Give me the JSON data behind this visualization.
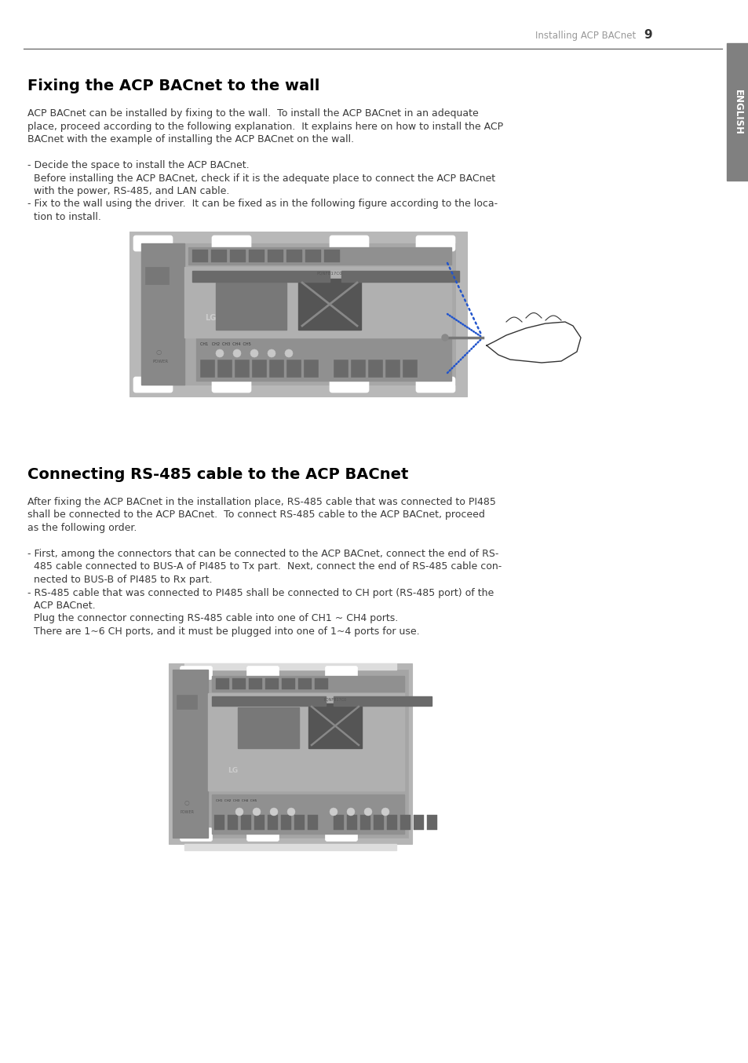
{
  "page_title": "Installing ACP BACnet",
  "page_number": "9",
  "background_color": "#ffffff",
  "english_tab_color": "#808080",
  "english_tab_text": "ENGLISH",
  "section1_title": "Fixing the ACP BACnet to the wall",
  "section2_title": "Connecting RS-485 cable to the ACP BACnet",
  "text_color": "#3a3a3a",
  "title_color": "#000000",
  "header_text_color": "#999999",
  "body_lines_s1": [
    "ACP BACnet can be installed by fixing to the wall.  To install the ACP BACnet in an adequate",
    "place, proceed according to the following explanation.  It explains here on how to install the ACP",
    "BACnet with the example of installing the ACP BACnet on the wall.",
    "",
    "- Decide the space to install the ACP BACnet.",
    "  Before installing the ACP BACnet, check if it is the adequate place to connect the ACP BACnet",
    "  with the power, RS-485, and LAN cable.",
    "- Fix to the wall using the driver.  It can be fixed as in the following figure according to the loca-",
    "  tion to install."
  ],
  "body_lines_s2": [
    "After fixing the ACP BACnet in the installation place, RS-485 cable that was connected to PI485",
    "shall be connected to the ACP BACnet.  To connect RS-485 cable to the ACP BACnet, proceed",
    "as the following order.",
    "",
    "- First, among the connectors that can be connected to the ACP BACnet, connect the end of RS-",
    "  485 cable connected to BUS-A of PI485 to Tx part.  Next, connect the end of RS-485 cable con-",
    "  nected to BUS-B of PI485 to Rx part.",
    "- RS-485 cable that was connected to PI485 shall be connected to CH port (RS-485 port) of the",
    "  ACP BACnet.",
    "  Plug the connector connecting RS-485 cable into one of CH1 ~ CH4 ports.",
    "  There are 1~6 CH ports, and it must be plugged into one of 1~4 ports for use."
  ]
}
